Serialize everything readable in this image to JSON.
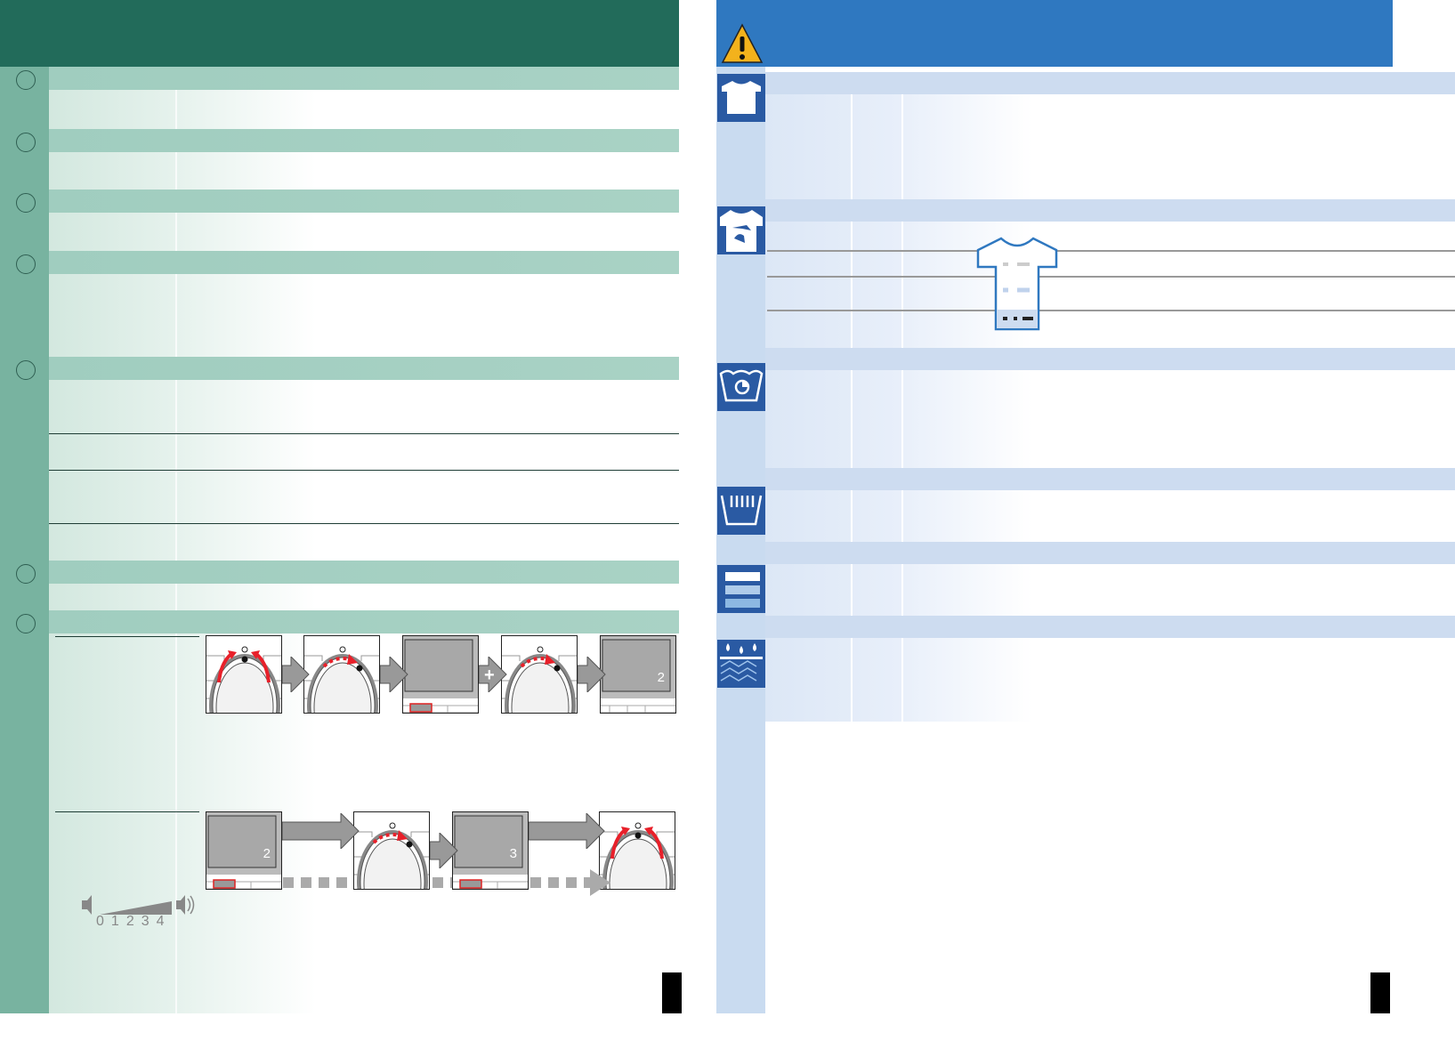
{
  "colors": {
    "left_header": "#226b5a",
    "left_strip": "#78b3a0",
    "left_band": "#a9d2c5",
    "right_header": "#2f78c0",
    "right_strip": "#c9dbf0",
    "right_band": "#cddcf0",
    "icon_bg": "#2a5aa3",
    "warning": "#f3b21c",
    "red_arrow": "#e8202a"
  },
  "left_page": {
    "icons": [
      "circle-marker-icon"
    ],
    "sequence_1": [
      {
        "type": "knob",
        "arrow": "both-inward"
      },
      {
        "type": "knob",
        "arrow": "dotted-right"
      },
      {
        "type": "display",
        "label": "",
        "button_highlight": true
      },
      {
        "type": "knob",
        "arrow": "dotted-right",
        "connector": "+"
      },
      {
        "type": "display",
        "label": "2",
        "button_highlight": false
      }
    ],
    "sequence_2": [
      {
        "type": "display",
        "label": "2",
        "button_highlight": true
      },
      {
        "type": "knob",
        "arrow": "dotted-right"
      },
      {
        "type": "display",
        "label": "3",
        "button_highlight": true
      },
      {
        "type": "knob",
        "arrow": "both-inward"
      }
    ],
    "volume_scale": [
      "0",
      "1",
      "2",
      "3",
      "4"
    ]
  },
  "right_page": {
    "header_icon": "warning-triangle-icon",
    "section_icons": [
      "shirt-icon",
      "stained-shirt-icon",
      "wash-basin-icon",
      "hand-wash-basin-icon",
      "fabric-layers-icon",
      "water-drops-fabric-icon"
    ]
  }
}
